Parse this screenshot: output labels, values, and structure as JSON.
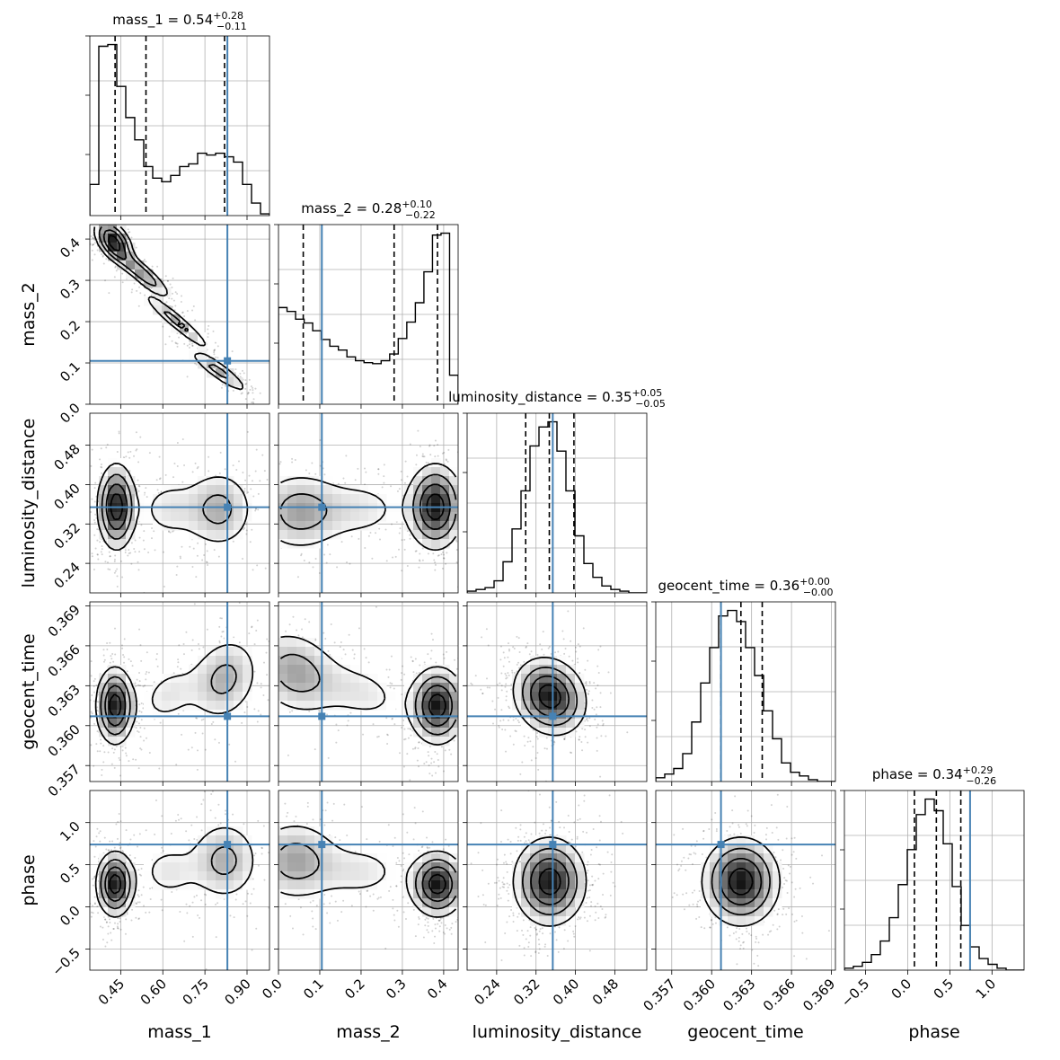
{
  "chart_data": {
    "type": "corner",
    "parameters": [
      "mass_1",
      "mass_2",
      "luminosity_distance",
      "geocent_time",
      "phase"
    ],
    "ranges": {
      "mass_1": [
        0.34,
        0.98
      ],
      "mass_2": [
        0.0,
        0.435
      ],
      "luminosity_distance": [
        0.18,
        0.545
      ],
      "geocent_time": [
        0.3558,
        0.3693
      ],
      "phase": [
        -0.75,
        1.38
      ]
    },
    "truths": {
      "mass_1": 0.83,
      "mass_2": 0.105,
      "luminosity_distance": 0.354,
      "geocent_time": 0.3607,
      "phase": 0.74
    },
    "axis_labels": [
      "mass_1",
      "mass_2",
      "luminosity_distance",
      "geocent_time",
      "phase"
    ],
    "ticks": {
      "mass_1": [
        "0.45",
        "0.60",
        "0.75",
        "0.90"
      ],
      "mass_2": [
        "0.0",
        "0.1",
        "0.2",
        "0.3",
        "0.4"
      ],
      "luminosity_distance": [
        "0.24",
        "0.32",
        "0.40",
        "0.48"
      ],
      "geocent_time": [
        "0.357",
        "0.360",
        "0.363",
        "0.366",
        "0.369"
      ],
      "phase": [
        "−0.5",
        "0.0",
        "0.5",
        "1.0"
      ]
    },
    "tick_values": {
      "mass_1": [
        0.45,
        0.6,
        0.75,
        0.9
      ],
      "mass_2": [
        0.0,
        0.1,
        0.2,
        0.3,
        0.4
      ],
      "luminosity_distance": [
        0.24,
        0.32,
        0.4,
        0.48
      ],
      "geocent_time": [
        0.357,
        0.36,
        0.363,
        0.366,
        0.369
      ],
      "phase": [
        -0.5,
        0.0,
        0.5,
        1.0
      ]
    },
    "titles": [
      {
        "name": "mass_1 = 0.54",
        "sup": "+0.28",
        "sub": "−0.11"
      },
      {
        "name": "mass_2 = 0.28",
        "sup": "+0.10",
        "sub": "−0.22"
      },
      {
        "name": "luminosity_distance = 0.35",
        "sup": "+0.05",
        "sub": "−0.05"
      },
      {
        "name": "geocent_time = 0.36",
        "sup": "+0.00",
        "sub": "−0.00"
      },
      {
        "name": "phase = 0.34",
        "sup": "+0.29",
        "sub": "−0.26"
      }
    ],
    "quantiles": {
      "mass_1": [
        0.43,
        0.54,
        0.82
      ],
      "mass_2": [
        0.06,
        0.28,
        0.385
      ],
      "luminosity_distance": [
        0.299,
        0.347,
        0.397
      ],
      "geocent_time": [
        0.3607,
        0.3622,
        0.3638
      ],
      "phase": [
        0.08,
        0.34,
        0.63
      ]
    },
    "histograms": {
      "mass_1": {
        "counts": [
          0.35,
          1.9,
          1.92,
          1.45,
          1.1,
          0.85,
          0.55,
          0.42,
          0.38,
          0.45,
          0.55,
          0.58,
          0.7,
          0.68,
          0.7,
          0.66,
          0.6,
          0.35,
          0.14,
          0.02
        ]
      },
      "mass_2": {
        "counts": [
          1.0,
          0.96,
          0.88,
          0.84,
          0.76,
          0.67,
          0.6,
          0.56,
          0.49,
          0.45,
          0.43,
          0.42,
          0.45,
          0.52,
          0.68,
          0.85,
          1.05,
          1.37,
          1.75,
          1.77,
          0.3
        ]
      },
      "luminosity_distance": {
        "counts": [
          0.01,
          0.02,
          0.03,
          0.07,
          0.18,
          0.37,
          0.59,
          0.85,
          0.96,
          0.99,
          0.82,
          0.59,
          0.33,
          0.17,
          0.09,
          0.04,
          0.02,
          0.01,
          0.0,
          0.0
        ]
      },
      "geocent_time": {
        "counts": [
          0.02,
          0.04,
          0.07,
          0.15,
          0.32,
          0.53,
          0.72,
          0.89,
          0.92,
          0.86,
          0.72,
          0.57,
          0.38,
          0.23,
          0.1,
          0.05,
          0.03,
          0.01,
          0.0,
          0.0
        ]
      },
      "phase": {
        "counts": [
          0.01,
          0.02,
          0.04,
          0.08,
          0.15,
          0.27,
          0.44,
          0.62,
          0.8,
          0.88,
          0.82,
          0.65,
          0.43,
          0.23,
          0.12,
          0.06,
          0.03,
          0.01,
          0.0,
          0.0
        ]
      }
    },
    "blobs": {
      "mass_1|mass_2": [
        {
          "x": 0.425,
          "y": 0.395,
          "sx": 0.035,
          "sy": 0.028,
          "w": 1.2,
          "rho": -0.5
        },
        {
          "x": 0.52,
          "y": 0.32,
          "sx": 0.06,
          "sy": 0.035,
          "w": 0.7,
          "rho": -0.9
        },
        {
          "x": 0.65,
          "y": 0.2,
          "sx": 0.07,
          "sy": 0.04,
          "w": 0.55,
          "rho": -0.95
        },
        {
          "x": 0.8,
          "y": 0.08,
          "sx": 0.06,
          "sy": 0.03,
          "w": 0.55,
          "rho": -0.9
        }
      ],
      "mass_1|luminosity_distance": [
        {
          "x": 0.435,
          "y": 0.355,
          "sx": 0.035,
          "sy": 0.045,
          "w": 1.2,
          "rho": 0
        },
        {
          "x": 0.8,
          "y": 0.35,
          "sx": 0.07,
          "sy": 0.045,
          "w": 0.5,
          "rho": 0
        },
        {
          "x": 0.62,
          "y": 0.35,
          "sx": 0.07,
          "sy": 0.04,
          "w": 0.25,
          "rho": 0
        }
      ],
      "mass_2|luminosity_distance": [
        {
          "x": 0.38,
          "y": 0.355,
          "sx": 0.035,
          "sy": 0.045,
          "w": 1.2,
          "rho": 0
        },
        {
          "x": 0.05,
          "y": 0.345,
          "sx": 0.06,
          "sy": 0.045,
          "w": 0.55,
          "rho": 0
        },
        {
          "x": 0.2,
          "y": 0.35,
          "sx": 0.07,
          "sy": 0.04,
          "w": 0.25,
          "rho": 0
        }
      ],
      "luminosity_distance|geocent_time": [
        {
          "x": 0.348,
          "y": 0.3622,
          "sx": 0.038,
          "sy": 0.0015,
          "w": 1.0,
          "rho": -0.15
        }
      ],
      "mass_1|geocent_time": [
        {
          "x": 0.43,
          "y": 0.3615,
          "sx": 0.035,
          "sy": 0.0015,
          "w": 1.2,
          "rho": 0
        },
        {
          "x": 0.82,
          "y": 0.3635,
          "sx": 0.07,
          "sy": 0.0018,
          "w": 0.5,
          "rho": 0.2
        },
        {
          "x": 0.62,
          "y": 0.3623,
          "sx": 0.07,
          "sy": 0.0015,
          "w": 0.25,
          "rho": 0.3
        }
      ],
      "mass_2|geocent_time": [
        {
          "x": 0.385,
          "y": 0.3615,
          "sx": 0.035,
          "sy": 0.0015,
          "w": 1.2,
          "rho": 0
        },
        {
          "x": 0.04,
          "y": 0.364,
          "sx": 0.06,
          "sy": 0.0018,
          "w": 0.55,
          "rho": -0.2
        },
        {
          "x": 0.2,
          "y": 0.3625,
          "sx": 0.07,
          "sy": 0.0015,
          "w": 0.25,
          "rho": -0.3
        }
      ],
      "mass_1|phase": [
        {
          "x": 0.43,
          "y": 0.27,
          "sx": 0.035,
          "sy": 0.2,
          "w": 1.2,
          "rho": 0
        },
        {
          "x": 0.82,
          "y": 0.55,
          "sx": 0.07,
          "sy": 0.27,
          "w": 0.5,
          "rho": 0
        },
        {
          "x": 0.62,
          "y": 0.42,
          "sx": 0.07,
          "sy": 0.22,
          "w": 0.25,
          "rho": 0
        }
      ],
      "mass_2|phase": [
        {
          "x": 0.385,
          "y": 0.27,
          "sx": 0.035,
          "sy": 0.2,
          "w": 1.2,
          "rho": 0
        },
        {
          "x": 0.04,
          "y": 0.55,
          "sx": 0.06,
          "sy": 0.27,
          "w": 0.55,
          "rho": 0
        },
        {
          "x": 0.2,
          "y": 0.42,
          "sx": 0.07,
          "sy": 0.22,
          "w": 0.25,
          "rho": 0
        }
      ],
      "luminosity_distance|phase": [
        {
          "x": 0.348,
          "y": 0.3,
          "sx": 0.038,
          "sy": 0.27,
          "w": 1.0,
          "rho": 0
        }
      ],
      "geocent_time|phase": [
        {
          "x": 0.3622,
          "y": 0.3,
          "sx": 0.0015,
          "sy": 0.27,
          "w": 1.0,
          "rho": 0
        }
      ]
    },
    "grid": true,
    "truth_color": "#4682b4",
    "contour_color": "#000000",
    "density_color": "#000000"
  }
}
